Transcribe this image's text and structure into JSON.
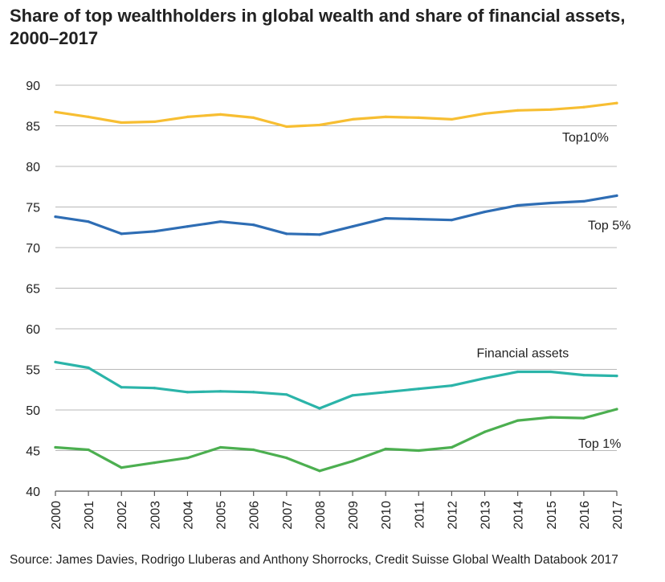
{
  "title": "Share of top wealthholders in global wealth and share of financial assets, 2000–2017",
  "source": "Source: James Davies, Rodrigo Lluberas and Anthony Shorrocks, Credit Suisse Global Wealth Databook 2017",
  "chart_data": {
    "type": "line",
    "title": "Share of top wealthholders in global wealth and share of financial assets, 2000–2017",
    "xlabel": "",
    "ylabel": "",
    "ylim": [
      40,
      90
    ],
    "yticks": [
      40,
      45,
      50,
      55,
      60,
      65,
      70,
      75,
      80,
      85,
      90
    ],
    "grid": true,
    "x": [
      "2000",
      "2001",
      "2002",
      "2003",
      "2004",
      "2005",
      "2006",
      "2007",
      "2008",
      "2009",
      "2010",
      "2011",
      "2012",
      "2013",
      "2014",
      "2015",
      "2016",
      "2017"
    ],
    "series": [
      {
        "name": "Top10%",
        "label": "Top10%",
        "color": "#f7be32",
        "values": [
          86.7,
          86.1,
          85.4,
          85.5,
          86.1,
          86.4,
          86.0,
          84.9,
          85.1,
          85.8,
          86.1,
          86.0,
          85.8,
          86.5,
          86.9,
          87.0,
          87.3,
          87.8
        ]
      },
      {
        "name": "Top 5%",
        "label": "Top 5%",
        "color": "#2e6db4",
        "values": [
          73.8,
          73.2,
          71.7,
          72.0,
          72.6,
          73.2,
          72.8,
          71.7,
          71.6,
          72.6,
          73.6,
          73.5,
          73.4,
          74.4,
          75.2,
          75.5,
          75.7,
          76.4
        ]
      },
      {
        "name": "Financial assets",
        "label": "Financial assets",
        "color": "#2bb4a9",
        "values": [
          55.9,
          55.2,
          52.8,
          52.7,
          52.2,
          52.3,
          52.2,
          51.9,
          50.2,
          51.8,
          52.2,
          52.6,
          53.0,
          53.9,
          54.7,
          54.7,
          54.3,
          54.2
        ]
      },
      {
        "name": "Top 1%",
        "label": "Top 1%",
        "color": "#4caf50",
        "values": [
          45.4,
          45.1,
          42.9,
          43.5,
          44.1,
          45.4,
          45.1,
          44.1,
          42.5,
          43.7,
          45.2,
          45.0,
          45.4,
          47.3,
          48.7,
          49.1,
          49.0,
          50.1
        ]
      }
    ]
  }
}
